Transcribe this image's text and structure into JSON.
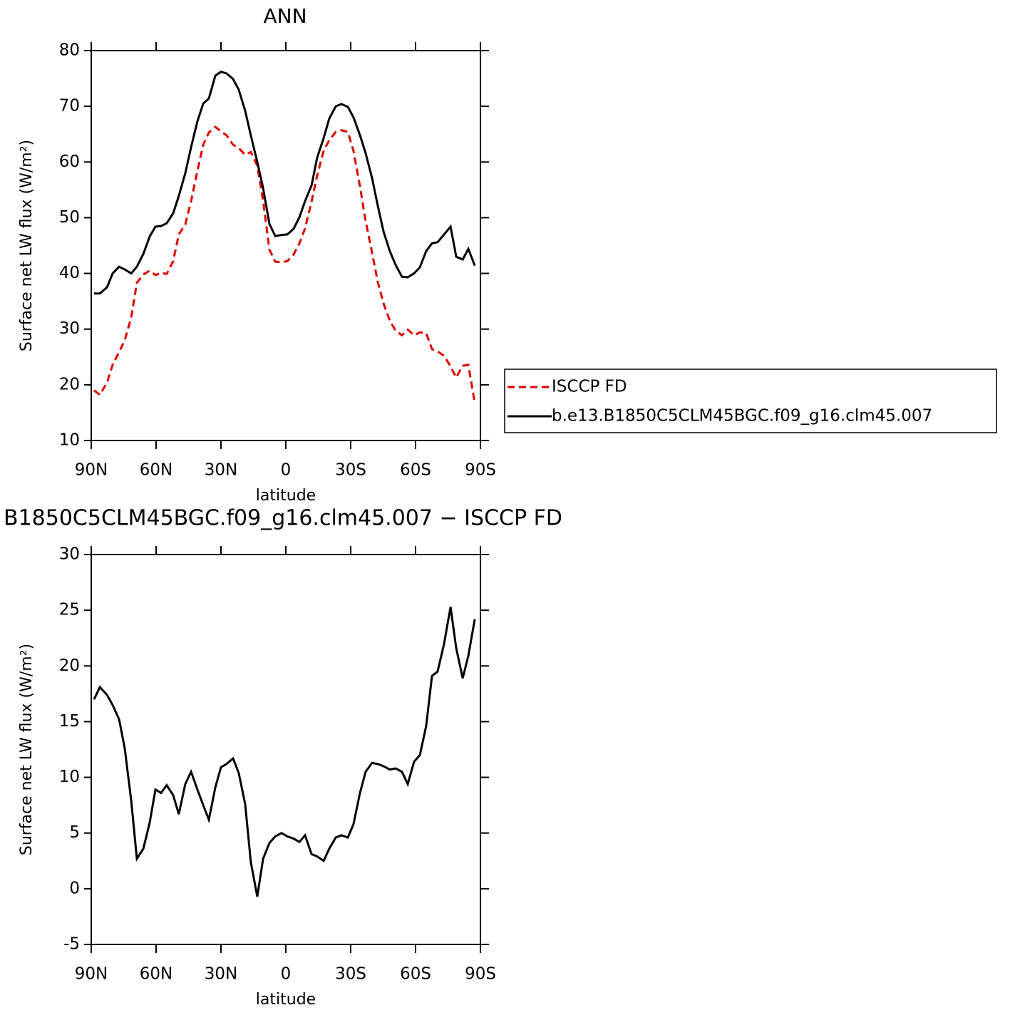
{
  "chart_data": [
    {
      "type": "line",
      "title": "ANN",
      "xlabel": "latitude",
      "ylabel": "Surface net LW flux (W/m²)",
      "x": [
        88.7,
        86,
        82.7,
        80.1,
        77.1,
        74.5,
        71.5,
        68.9,
        65.9,
        63,
        60.3,
        57.7,
        55.1,
        52.1,
        49.5,
        46.5,
        43.8,
        40.9,
        38.2,
        35.6,
        32.6,
        30,
        27.4,
        24.4,
        21.8,
        18.8,
        16.2,
        13.2,
        10.5,
        7.6,
        4.9,
        2,
        -0.7,
        -3.6,
        -6.3,
        -8.9,
        -11.9,
        -14.5,
        -17.5,
        -20.1,
        -23.1,
        -25.7,
        -28.7,
        -31.3,
        -34.3,
        -36.9,
        -39.9,
        -42.5,
        -45.2,
        -48.1,
        -50.8,
        -53.7,
        -56.4,
        -59.3,
        -62,
        -64.9,
        -67.6,
        -70.2,
        -73.2,
        -76.2,
        -78.8,
        -81.8,
        -84.4,
        -87.4
      ],
      "series": [
        {
          "name": "ISCCP FD",
          "color": "#e00000",
          "linestyle": "dashed",
          "values": [
            19,
            18.2,
            20.4,
            23.6,
            25.9,
            28,
            32.1,
            38.3,
            39.8,
            40.5,
            39.7,
            40.1,
            39.9,
            42.2,
            47,
            48.8,
            53,
            58.4,
            63.1,
            65.3,
            66.3,
            65.5,
            64.8,
            63.1,
            62.5,
            61.3,
            61.8,
            59.3,
            53,
            44.3,
            42.1,
            42,
            42.2,
            43.4,
            45.4,
            48.1,
            52.9,
            57.6,
            62,
            63.9,
            65.4,
            65.7,
            65.4,
            62,
            55.6,
            49.4,
            43.7,
            38.5,
            34.6,
            31.5,
            29.7,
            28.9,
            29.9,
            28.9,
            29.4,
            29.3,
            26.4,
            26,
            25.2,
            23.3,
            21.3,
            23.4,
            23.6,
            16.7
          ]
        },
        {
          "name": "b.e13.B1850C5CLM45BGC.f09_g16.clm45.007",
          "color": "#000000",
          "linestyle": "solid",
          "values": [
            36.4,
            36.4,
            37.5,
            40,
            41.2,
            40.7,
            40,
            41.2,
            43.5,
            46.6,
            48.4,
            48.5,
            49,
            50.8,
            53.9,
            58,
            62.7,
            67.3,
            70.5,
            71.4,
            75.5,
            76.2,
            75.9,
            74.9,
            73,
            69.2,
            64.8,
            60,
            55.3,
            48.9,
            46.7,
            46.9,
            47,
            48,
            50.1,
            53,
            55.8,
            60.8,
            64.3,
            67.8,
            70,
            70.4,
            69.9,
            68,
            64.8,
            61.6,
            57.1,
            52.2,
            47.5,
            44,
            41.5,
            39.4,
            39.3,
            40,
            41.1,
            44,
            45.4,
            45.6,
            47,
            48.4,
            43,
            42.5,
            44.4,
            41.4
          ]
        }
      ],
      "xlim": [
        90,
        -90
      ],
      "xticks": [
        {
          "value": 90,
          "label": "90N"
        },
        {
          "value": 60,
          "label": "60N"
        },
        {
          "value": 30,
          "label": "30N"
        },
        0,
        {
          "value": -30,
          "label": "30S"
        },
        {
          "value": -60,
          "label": "60S"
        },
        {
          "value": -90,
          "label": "90S"
        }
      ],
      "ylim": [
        10,
        80
      ],
      "yticks": [
        10,
        20,
        30,
        40,
        50,
        60,
        70,
        80
      ],
      "legend": "right"
    },
    {
      "type": "line",
      "title": "B1850C5CLM45BGC.f09_g16.clm45.007 − ISCCP FD",
      "xlabel": "latitude",
      "ylabel": "Surface net LW flux (W/m²)",
      "x": [
        88.7,
        86,
        82.7,
        80.1,
        77.1,
        74.5,
        71.5,
        68.9,
        65.9,
        63,
        60.3,
        57.7,
        55.1,
        52.1,
        49.5,
        46.5,
        43.8,
        40.9,
        38.2,
        35.6,
        32.6,
        30,
        27.4,
        24.4,
        21.8,
        18.8,
        16.2,
        13.2,
        10.5,
        7.6,
        4.9,
        2,
        -0.7,
        -3.6,
        -6.3,
        -8.9,
        -11.9,
        -14.5,
        -17.5,
        -20.1,
        -23.1,
        -25.7,
        -28.7,
        -31.3,
        -34.3,
        -36.9,
        -39.9,
        -42.5,
        -45.2,
        -48.1,
        -50.8,
        -53.7,
        -56.4,
        -59.3,
        -62,
        -64.9,
        -67.6,
        -70.2,
        -73.2,
        -76.2,
        -78.8,
        -81.8,
        -84.4,
        -87.4
      ],
      "series": [
        {
          "color": "#000000",
          "linestyle": "solid",
          "values": [
            17,
            18.1,
            17.4,
            16.5,
            15.2,
            12.6,
            7.9,
            2.7,
            3.6,
            5.9,
            8.9,
            8.6,
            9.3,
            8.4,
            6.7,
            9.4,
            10.5,
            8.9,
            7.5,
            6.2,
            9.1,
            10.9,
            11.2,
            11.7,
            10.4,
            7.6,
            2.4,
            -0.7,
            2.7,
            4.1,
            4.7,
            5,
            4.7,
            4.5,
            4.2,
            4.8,
            3.1,
            2.9,
            2.5,
            3.6,
            4.6,
            4.8,
            4.6,
            5.8,
            8.6,
            10.5,
            11.3,
            11.2,
            11,
            10.7,
            10.8,
            10.5,
            9.4,
            11.4,
            12,
            14.6,
            19.1,
            19.5,
            22,
            25.3,
            21.6,
            18.9,
            20.9,
            24.2
          ]
        }
      ],
      "xlim": [
        90,
        -90
      ],
      "xticks": [
        {
          "value": 90,
          "label": "90N"
        },
        {
          "value": 60,
          "label": "60N"
        },
        {
          "value": 30,
          "label": "30N"
        },
        0,
        {
          "value": -30,
          "label": "30S"
        },
        {
          "value": -60,
          "label": "60S"
        },
        {
          "value": -90,
          "label": "90S"
        }
      ],
      "ylim": [
        -5,
        30
      ],
      "yticks": [
        -5,
        0,
        5,
        10,
        15,
        20,
        25,
        30
      ]
    }
  ]
}
